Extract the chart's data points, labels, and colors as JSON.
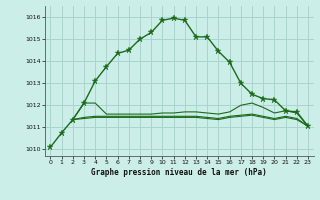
{
  "title": "Graphe pression niveau de la mer (hPa)",
  "background_color": "#cceee8",
  "grid_color": "#aad4ce",
  "line_color": "#1a6b1a",
  "xlim": [
    -0.5,
    23.5
  ],
  "ylim": [
    1009.7,
    1016.5
  ],
  "yticks": [
    1010,
    1011,
    1012,
    1013,
    1014,
    1015,
    1016
  ],
  "xticks": [
    0,
    1,
    2,
    3,
    4,
    5,
    6,
    7,
    8,
    9,
    10,
    11,
    12,
    13,
    14,
    15,
    16,
    17,
    18,
    19,
    20,
    21,
    22,
    23
  ],
  "series1_x": [
    0,
    1,
    2,
    3,
    4,
    5,
    6,
    7,
    8,
    9,
    10,
    11,
    12,
    13,
    14,
    15,
    16,
    17,
    18,
    19,
    20,
    21,
    22,
    23
  ],
  "series1_y": [
    1010.1,
    1010.75,
    1011.35,
    1012.1,
    1013.1,
    1013.75,
    1014.35,
    1014.5,
    1015.0,
    1015.3,
    1015.85,
    1015.95,
    1015.85,
    1015.1,
    1015.1,
    1014.45,
    1013.95,
    1013.0,
    1012.5,
    1012.3,
    1012.25,
    1011.75,
    1011.7,
    1011.05
  ],
  "series2_x": [
    2,
    3,
    4,
    5,
    6,
    7,
    8,
    9,
    10,
    11,
    12,
    13,
    14,
    15,
    16,
    17,
    18,
    19,
    20,
    21,
    22,
    23
  ],
  "series2_y": [
    1011.35,
    1012.1,
    1012.1,
    1011.6,
    1011.6,
    1011.6,
    1011.6,
    1011.6,
    1011.65,
    1011.65,
    1011.7,
    1011.7,
    1011.65,
    1011.6,
    1011.7,
    1012.0,
    1012.1,
    1011.9,
    1011.65,
    1011.75,
    1011.65,
    1011.05
  ],
  "series3_x": [
    2,
    3,
    4,
    5,
    6,
    7,
    8,
    9,
    10,
    11,
    12,
    13,
    14,
    15,
    16,
    17,
    18,
    19,
    20,
    21,
    22,
    23
  ],
  "series3_y": [
    1011.35,
    1011.45,
    1011.5,
    1011.5,
    1011.5,
    1011.5,
    1011.5,
    1011.5,
    1011.5,
    1011.5,
    1011.5,
    1011.5,
    1011.45,
    1011.4,
    1011.5,
    1011.55,
    1011.6,
    1011.5,
    1011.4,
    1011.5,
    1011.4,
    1011.05
  ],
  "series4_x": [
    2,
    3,
    4,
    5,
    6,
    7,
    8,
    9,
    10,
    11,
    12,
    13,
    14,
    15,
    16,
    17,
    18,
    19,
    20,
    21,
    22,
    23
  ],
  "series4_y": [
    1011.35,
    1011.4,
    1011.45,
    1011.45,
    1011.45,
    1011.45,
    1011.45,
    1011.45,
    1011.45,
    1011.45,
    1011.45,
    1011.45,
    1011.4,
    1011.35,
    1011.45,
    1011.5,
    1011.55,
    1011.45,
    1011.35,
    1011.45,
    1011.35,
    1011.05
  ]
}
